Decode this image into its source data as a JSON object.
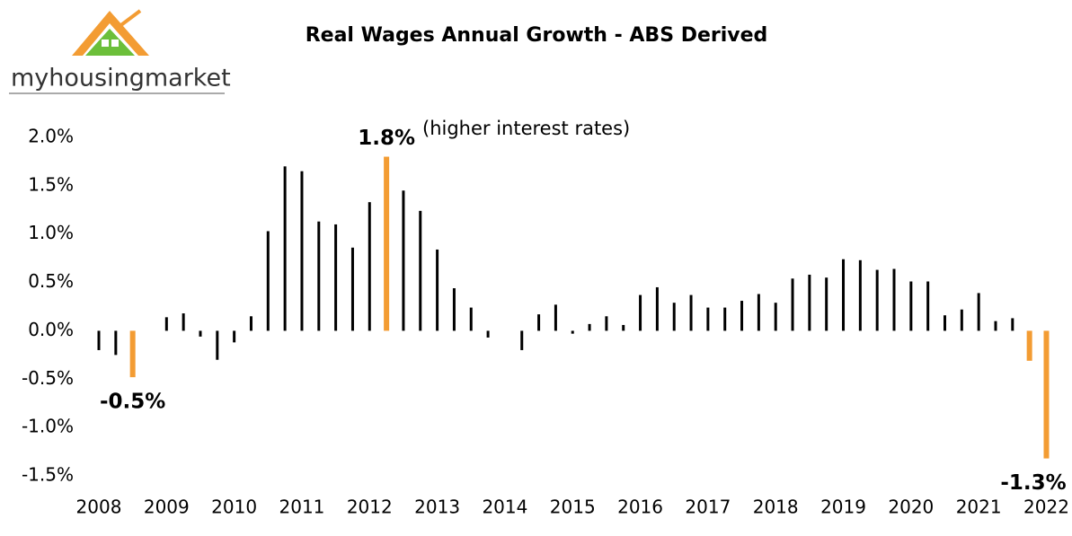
{
  "chart_data": {
    "type": "bar",
    "title": "Real Wages Annual Growth - ABS Derived",
    "logo": "myhousingmarket",
    "annotation": "(higher interest rates)",
    "categories": [
      "2008",
      null,
      null,
      null,
      "2009",
      null,
      null,
      null,
      "2010",
      null,
      null,
      null,
      "2011",
      null,
      null,
      null,
      "2012",
      null,
      null,
      null,
      "2013",
      null,
      null,
      null,
      "2014",
      null,
      null,
      null,
      "2015",
      null,
      null,
      null,
      "2016",
      null,
      null,
      null,
      "2017",
      null,
      null,
      null,
      "2018",
      null,
      null,
      null,
      "2019",
      null,
      null,
      null,
      "2020",
      null,
      null,
      null,
      "2021",
      null,
      null,
      null,
      "2022"
    ],
    "values": [
      -0.2,
      -0.25,
      -0.48,
      0,
      0.14,
      0.18,
      -0.06,
      -0.3,
      -0.12,
      0.15,
      1.03,
      1.7,
      1.65,
      1.13,
      1.1,
      0.86,
      1.33,
      1.8,
      1.45,
      1.24,
      0.84,
      0.44,
      0.24,
      -0.07,
      0,
      -0.2,
      0.17,
      0.27,
      -0.03,
      0.07,
      0.15,
      0.06,
      0.37,
      0.45,
      0.29,
      0.37,
      0.24,
      0.24,
      0.31,
      0.38,
      0.29,
      0.54,
      0.58,
      0.55,
      0.74,
      0.73,
      0.63,
      0.64,
      0.51,
      0.51,
      0.16,
      0.22,
      0.39,
      0.1,
      0.13,
      -0.31,
      -1.32
    ],
    "value_labels": [
      null,
      null,
      "-0.5%",
      null,
      null,
      null,
      null,
      null,
      null,
      null,
      null,
      null,
      null,
      null,
      null,
      null,
      null,
      "1.8%",
      null,
      null,
      null,
      null,
      null,
      null,
      null,
      null,
      null,
      null,
      null,
      null,
      null,
      null,
      null,
      null,
      null,
      null,
      null,
      null,
      null,
      null,
      null,
      null,
      null,
      null,
      null,
      null,
      null,
      null,
      null,
      null,
      null,
      null,
      null,
      null,
      null,
      null,
      "-1.3%"
    ],
    "colors": [
      "#000000",
      "#000000",
      "#f39c33",
      "#000000",
      "#000000",
      "#000000",
      "#000000",
      "#000000",
      "#000000",
      "#000000",
      "#000000",
      "#000000",
      "#000000",
      "#000000",
      "#000000",
      "#000000",
      "#000000",
      "#f39c33",
      "#000000",
      "#000000",
      "#000000",
      "#000000",
      "#000000",
      "#000000",
      "#000000",
      "#000000",
      "#000000",
      "#000000",
      "#000000",
      "#000000",
      "#000000",
      "#000000",
      "#000000",
      "#000000",
      "#000000",
      "#000000",
      "#000000",
      "#000000",
      "#000000",
      "#000000",
      "#000000",
      "#000000",
      "#000000",
      "#000000",
      "#000000",
      "#000000",
      "#000000",
      "#000000",
      "#000000",
      "#000000",
      "#000000",
      "#000000",
      "#000000",
      "#000000",
      "#000000",
      "#f39c33",
      "#f39c33"
    ],
    "ylim": [
      -1.5,
      2.0
    ],
    "yticks": [
      {
        "value": -1.5,
        "label": "-1.5%"
      },
      {
        "value": -1.0,
        "label": "-1.0%"
      },
      {
        "value": -0.5,
        "label": "-0.5%"
      },
      {
        "value": 0,
        "label": "0.0%"
      },
      {
        "value": 0.5,
        "label": "0.5%"
      },
      {
        "value": 1.0,
        "label": "1.0%"
      },
      {
        "value": 1.5,
        "label": "1.5%"
      },
      {
        "value": 2.0,
        "label": "2.0%"
      }
    ],
    "grid": false
  }
}
